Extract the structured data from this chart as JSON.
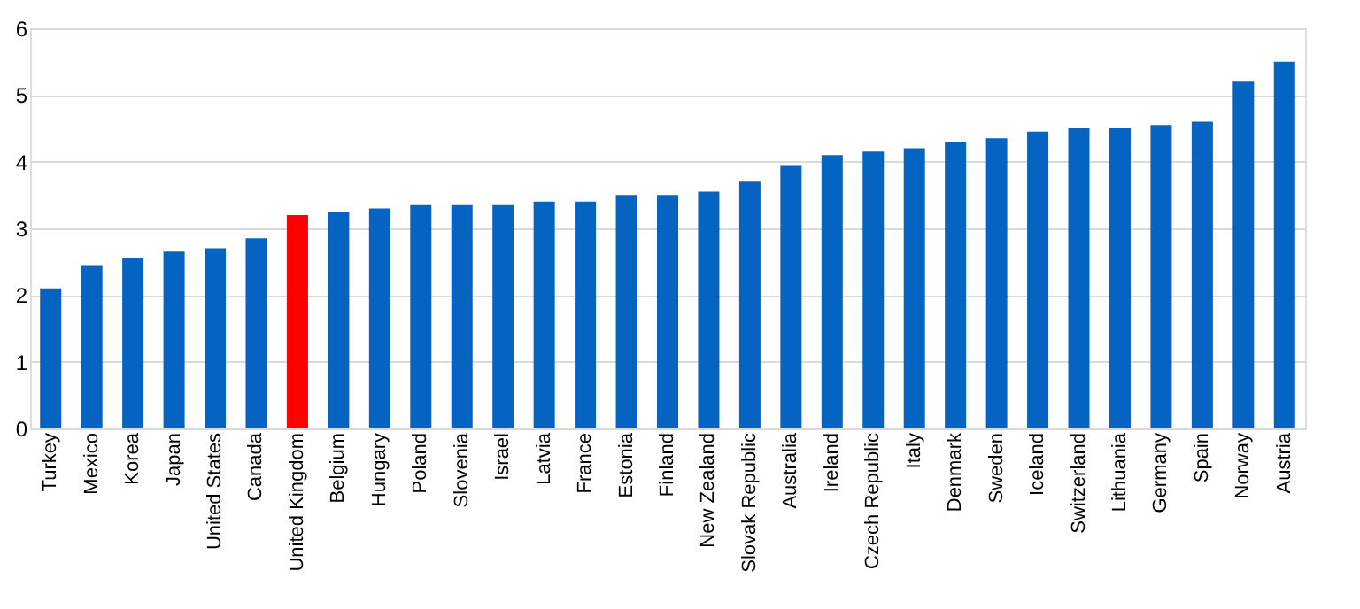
{
  "chart_data": {
    "type": "bar",
    "categories": [
      "Turkey",
      "Mexico",
      "Korea",
      "Japan",
      "United States",
      "Canada",
      "United Kingdom",
      "Belgium",
      "Hungary",
      "Poland",
      "Slovenia",
      "Israel",
      "Latvia",
      "France",
      "Estonia",
      "Finland",
      "New Zealand",
      "Slovak Republic",
      "Australia",
      "Ireland",
      "Czech Republic",
      "Italy",
      "Denmark",
      "Sweden",
      "Iceland",
      "Switzerland",
      "Lithuania",
      "Germany",
      "Spain",
      "Norway",
      "Austria"
    ],
    "values": [
      2.1,
      2.45,
      2.55,
      2.65,
      2.7,
      2.85,
      3.2,
      3.25,
      3.3,
      3.35,
      3.35,
      3.35,
      3.4,
      3.4,
      3.5,
      3.5,
      3.55,
      3.7,
      3.95,
      4.1,
      4.15,
      4.2,
      4.3,
      4.35,
      4.45,
      4.5,
      4.5,
      4.55,
      4.6,
      5.2,
      5.5
    ],
    "colors": [
      "#0563c1",
      "#0563c1",
      "#0563c1",
      "#0563c1",
      "#0563c1",
      "#0563c1",
      "#ff0000",
      "#0563c1",
      "#0563c1",
      "#0563c1",
      "#0563c1",
      "#0563c1",
      "#0563c1",
      "#0563c1",
      "#0563c1",
      "#0563c1",
      "#0563c1",
      "#0563c1",
      "#0563c1",
      "#0563c1",
      "#0563c1",
      "#0563c1",
      "#0563c1",
      "#0563c1",
      "#0563c1",
      "#0563c1",
      "#0563c1",
      "#0563c1",
      "#0563c1",
      "#0563c1",
      "#0563c1"
    ],
    "ylim": [
      0,
      6
    ],
    "yticks": [
      0,
      1,
      2,
      3,
      4,
      5,
      6
    ],
    "grid": "y"
  }
}
